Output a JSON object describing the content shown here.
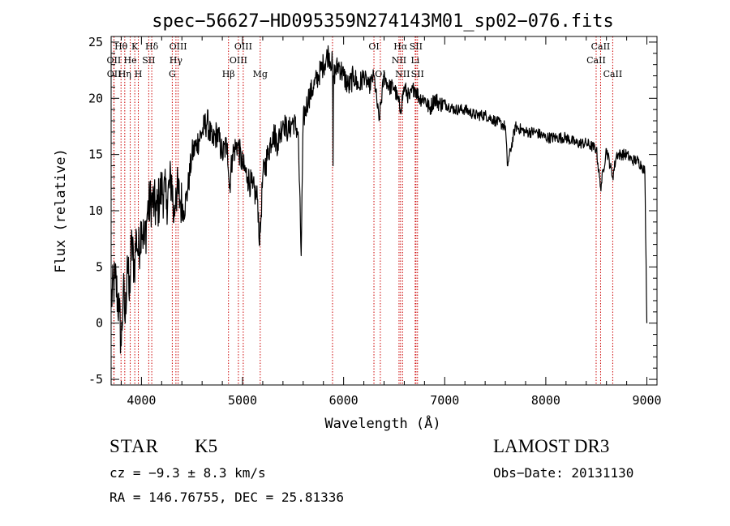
{
  "chart_data": {
    "type": "line",
    "title": "spec−56627−HD095359N274143M01_sp02−076.fits",
    "xlabel": "Wavelength (Å)",
    "ylabel": "Flux (relative)",
    "xlim": [
      3700,
      9100
    ],
    "ylim": [
      -5.5,
      25.5
    ],
    "xticks": [
      4000,
      5000,
      6000,
      7000,
      8000,
      9000
    ],
    "yticks": [
      -5,
      0,
      5,
      10,
      15,
      20,
      25
    ],
    "grid": false,
    "series": [
      {
        "name": "flux",
        "x": [
          3700,
          3740,
          3780,
          3800,
          3820,
          3840,
          3860,
          3880,
          3900,
          3930,
          3950,
          3970,
          4000,
          4030,
          4060,
          4100,
          4150,
          4200,
          4250,
          4300,
          4320,
          4340,
          4380,
          4420,
          4460,
          4500,
          4550,
          4600,
          4650,
          4700,
          4750,
          4800,
          4850,
          4870,
          4900,
          4950,
          5000,
          5050,
          5100,
          5150,
          5170,
          5180,
          5200,
          5250,
          5300,
          5350,
          5400,
          5450,
          5500,
          5550,
          5580,
          5600,
          5650,
          5700,
          5750,
          5800,
          5850,
          5890,
          5895,
          5900,
          5950,
          6000,
          6050,
          6100,
          6150,
          6200,
          6250,
          6300,
          6350,
          6400,
          6450,
          6500,
          6563,
          6600,
          6650,
          6700,
          6750,
          6800,
          6850,
          6900,
          6950,
          7000,
          7100,
          7200,
          7300,
          7400,
          7500,
          7600,
          7620,
          7700,
          7800,
          7900,
          8000,
          8100,
          8200,
          8300,
          8400,
          8500,
          8542,
          8600,
          8662,
          8700,
          8800,
          8850,
          8900,
          8950,
          8980,
          9000
        ],
        "values": [
          2,
          4,
          1,
          -2,
          3,
          0,
          6,
          2,
          7,
          5,
          8,
          6,
          9,
          7,
          10,
          11,
          10,
          12,
          11,
          13,
          9,
          12,
          11,
          10,
          12,
          15,
          16,
          17,
          18,
          16,
          17,
          15,
          16,
          12,
          15,
          16,
          14,
          13,
          12,
          11,
          7,
          9,
          13,
          15,
          17,
          16,
          18,
          17,
          18,
          17,
          6,
          18,
          20,
          21,
          22,
          23,
          24,
          23,
          14,
          22,
          23,
          22,
          21,
          22,
          21,
          22,
          21,
          22,
          18,
          22,
          21,
          21,
          19,
          21,
          20,
          21,
          20,
          20,
          19,
          20,
          19.5,
          19.5,
          19,
          19,
          18.5,
          18.5,
          18,
          17.5,
          14,
          17.5,
          17,
          17,
          16.5,
          16.5,
          16.5,
          16,
          16,
          15.5,
          12,
          15.5,
          13,
          15,
          15,
          14.5,
          14.5,
          14,
          13.5,
          0
        ]
      }
    ],
    "line_labels": [
      {
        "text": "Hθ",
        "x": 3798,
        "row": 1
      },
      {
        "text": "K",
        "x": 3934,
        "row": 1
      },
      {
        "text": "Hδ",
        "x": 4102,
        "row": 1
      },
      {
        "text": "OIII",
        "x": 4363,
        "row": 1
      },
      {
        "text": "OIII",
        "x": 5007,
        "row": 1
      },
      {
        "text": "OI",
        "x": 6300,
        "row": 1
      },
      {
        "text": "Hα",
        "x": 6563,
        "row": 1
      },
      {
        "text": "SII",
        "x": 6716,
        "row": 1
      },
      {
        "text": "CaII",
        "x": 8542,
        "row": 1
      },
      {
        "text": "OII",
        "x": 3727,
        "row": 2
      },
      {
        "text": "He",
        "x": 3889,
        "row": 2
      },
      {
        "text": "SII",
        "x": 4072,
        "row": 2
      },
      {
        "text": "Hγ",
        "x": 4341,
        "row": 2
      },
      {
        "text": "OIII",
        "x": 4959,
        "row": 2
      },
      {
        "text": "NII",
        "x": 6548,
        "row": 2
      },
      {
        "text": "Li",
        "x": 6708,
        "row": 2
      },
      {
        "text": "CaII",
        "x": 8498,
        "row": 2
      },
      {
        "text": "OII",
        "x": 3729,
        "row": 3
      },
      {
        "text": "Hη",
        "x": 3835,
        "row": 3
      },
      {
        "text": "H",
        "x": 3969,
        "row": 3
      },
      {
        "text": "G",
        "x": 4305,
        "row": 3
      },
      {
        "text": "Hβ",
        "x": 4861,
        "row": 3
      },
      {
        "text": "Mg",
        "x": 5175,
        "row": 3
      },
      {
        "text": "OI",
        "x": 6363,
        "row": 3
      },
      {
        "text": "NII",
        "x": 6583,
        "row": 3
      },
      {
        "text": "SII",
        "x": 6731,
        "row": 3
      },
      {
        "text": "CaII",
        "x": 8662,
        "row": 3
      }
    ],
    "marker_lines": [
      3727,
      3729,
      3798,
      3835,
      3889,
      3934,
      3969,
      4072,
      4102,
      4305,
      4341,
      4363,
      4861,
      4959,
      5007,
      5175,
      5890,
      6300,
      6363,
      6548,
      6563,
      6583,
      6708,
      6716,
      6731,
      8498,
      8542,
      8662
    ],
    "colors": {
      "axes": "#000000",
      "series": "#000000",
      "markers": "#cc0000"
    }
  },
  "footer": {
    "object_type": "STAR",
    "subclass": "K5",
    "survey": "LAMOST DR3",
    "cz": "cz = −9.3 ± 8.3 km/s",
    "obs_date": "Obs−Date: 20131130",
    "coords": "RA = 146.76755, DEC =  25.81336"
  }
}
